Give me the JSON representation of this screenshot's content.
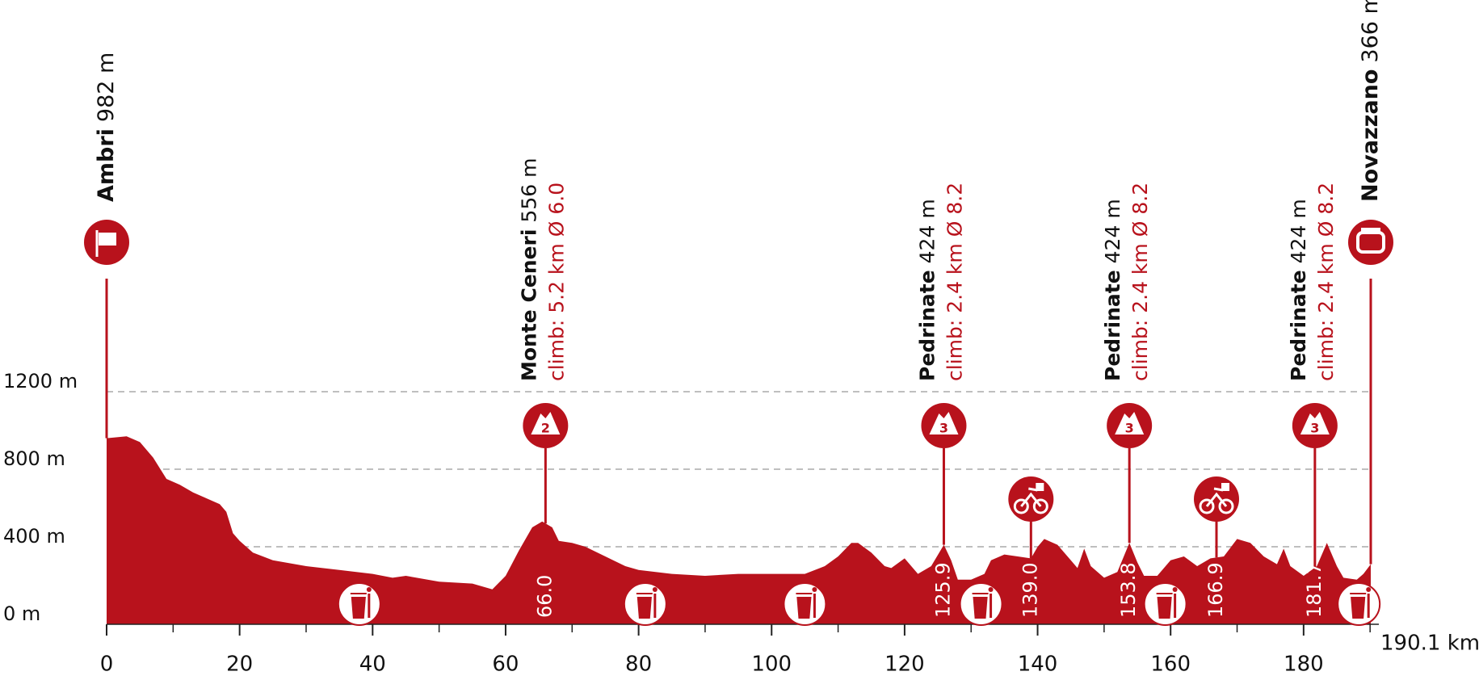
{
  "chart_data": {
    "type": "area",
    "color": "#b8121c",
    "x": [
      0,
      3,
      5,
      7,
      9,
      11,
      13,
      15,
      17,
      18,
      19,
      20,
      22,
      25,
      30,
      35,
      40,
      43,
      45,
      50,
      55,
      58,
      60,
      62,
      64,
      65.5,
      67,
      68,
      70,
      72,
      75,
      78,
      80,
      85,
      90,
      95,
      100,
      105,
      108,
      110,
      112,
      113,
      115,
      117,
      118,
      120,
      122,
      124,
      125.9,
      127,
      128,
      130,
      132,
      133,
      135,
      137,
      139,
      140,
      141,
      143,
      145,
      146,
      147,
      148,
      150,
      152,
      153.8,
      155,
      156,
      158,
      160,
      162,
      164,
      166,
      168,
      170,
      172,
      174,
      176,
      177,
      178,
      180,
      182,
      183.5,
      185,
      186,
      188,
      189,
      190.1
    ],
    "values": [
      960,
      970,
      940,
      860,
      750,
      720,
      680,
      650,
      620,
      580,
      470,
      430,
      370,
      330,
      300,
      280,
      260,
      240,
      250,
      220,
      210,
      180,
      250,
      380,
      500,
      530,
      500,
      430,
      420,
      400,
      350,
      300,
      280,
      260,
      250,
      260,
      260,
      260,
      300,
      350,
      420,
      420,
      370,
      300,
      290,
      340,
      260,
      300,
      410,
      330,
      230,
      230,
      260,
      330,
      360,
      350,
      340,
      400,
      440,
      410,
      330,
      290,
      390,
      300,
      240,
      270,
      420,
      320,
      250,
      250,
      330,
      350,
      300,
      340,
      350,
      440,
      420,
      350,
      310,
      390,
      300,
      250,
      300,
      420,
      300,
      240,
      230,
      260,
      310
    ],
    "xlim": [
      0,
      190.1
    ],
    "xticks": [
      0,
      20,
      40,
      60,
      80,
      100,
      120,
      140,
      160,
      180
    ],
    "xminor_ticks": [
      10,
      30,
      50,
      70,
      90,
      110,
      130,
      150,
      170,
      190
    ],
    "x_end_label": "190.1 km",
    "ylim": [
      0,
      1200
    ],
    "yticks": [
      {
        "value": 0,
        "label": "0 m"
      },
      {
        "value": 400,
        "label": "400 m"
      },
      {
        "value": 800,
        "label": "800 m"
      },
      {
        "value": 1200,
        "label": "1200 m"
      }
    ],
    "grid": true,
    "start": {
      "name": "Ambri",
      "elevation": "982 m"
    },
    "finish": {
      "name": "Novazzano",
      "elevation": "366 m"
    },
    "climbs": [
      {
        "name": "Monte Ceneri",
        "elevation": "556 m",
        "climb": "climb: 5.2 km Ø 6.0",
        "category": "2",
        "km": {
          "value": 66,
          "label": "66.0"
        }
      },
      {
        "name": "Pedrinate",
        "elevation": "424 m",
        "climb": "climb: 2.4 km Ø 8.2",
        "category": "3",
        "km": {
          "value": 125.9,
          "label": "125.9"
        }
      },
      {
        "name": "Pedrinate",
        "elevation": "424 m",
        "climb": "climb: 2.4 km Ø 8.2",
        "category": "3",
        "km": {
          "value": 153.8,
          "label": "153.8"
        }
      },
      {
        "name": "Pedrinate",
        "elevation": "424 m",
        "climb": "climb: 2.4 km Ø 8.2",
        "category": "3",
        "km": {
          "value": 181.7,
          "label": "181.7"
        }
      }
    ],
    "sprints": [
      {
        "km": {
          "value": 139,
          "label": "139.0"
        }
      },
      {
        "km": {
          "value": 166.9,
          "label": "166.9"
        }
      }
    ]
  }
}
